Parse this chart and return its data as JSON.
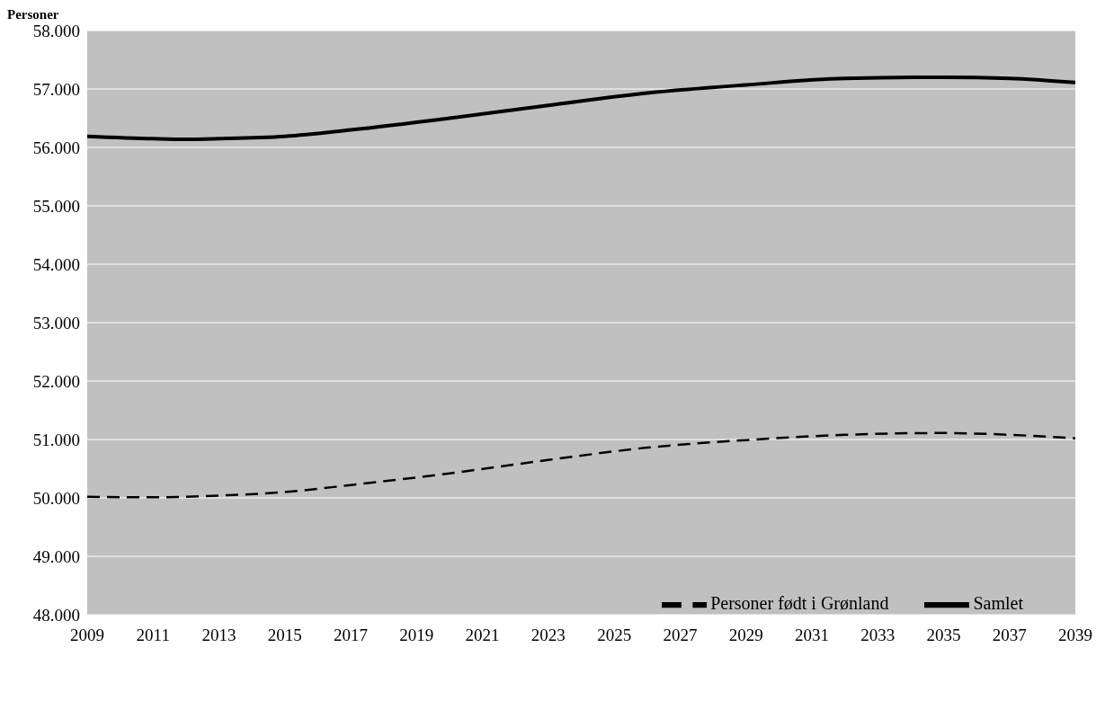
{
  "chart_data": {
    "type": "line",
    "ylabel": "Personer",
    "series": [
      {
        "name": "Personer født i Grønland",
        "color": "#000000",
        "line_style": "dashed",
        "x": [
          2009,
          2011,
          2013,
          2015,
          2017,
          2020,
          2023,
          2026,
          2029,
          2032,
          2035,
          2037,
          2039
        ],
        "values": [
          50020,
          50010,
          50040,
          50100,
          50220,
          50420,
          50650,
          50860,
          50990,
          51080,
          51110,
          51080,
          51020
        ]
      },
      {
        "name": "Samlet",
        "color": "#000000",
        "line_style": "solid",
        "x": [
          2009,
          2011,
          2012,
          2013,
          2015,
          2017,
          2020,
          2023,
          2026,
          2029,
          2032,
          2035,
          2037,
          2039
        ],
        "values": [
          56190,
          56150,
          56140,
          56150,
          56190,
          56300,
          56500,
          56720,
          56930,
          57070,
          57180,
          57200,
          57180,
          57110
        ]
      }
    ],
    "xlim": [
      2009,
      2039
    ],
    "xticks": [
      2009,
      2011,
      2013,
      2015,
      2017,
      2019,
      2021,
      2023,
      2025,
      2027,
      2029,
      2031,
      2033,
      2035,
      2037,
      2039
    ],
    "ylim": [
      48000,
      58000
    ],
    "yticks": [
      {
        "value": 48000,
        "label": "48.000"
      },
      {
        "value": 49000,
        "label": "49.000"
      },
      {
        "value": 50000,
        "label": "50.000"
      },
      {
        "value": 51000,
        "label": "51.000"
      },
      {
        "value": 52000,
        "label": "52.000"
      },
      {
        "value": 53000,
        "label": "53.000"
      },
      {
        "value": 54000,
        "label": "54.000"
      },
      {
        "value": 55000,
        "label": "55.000"
      },
      {
        "value": 56000,
        "label": "56.000"
      },
      {
        "value": 57000,
        "label": "57.000"
      },
      {
        "value": 58000,
        "label": "58.000"
      }
    ],
    "grid": "y",
    "legend": "bottom right",
    "marker": "none"
  }
}
